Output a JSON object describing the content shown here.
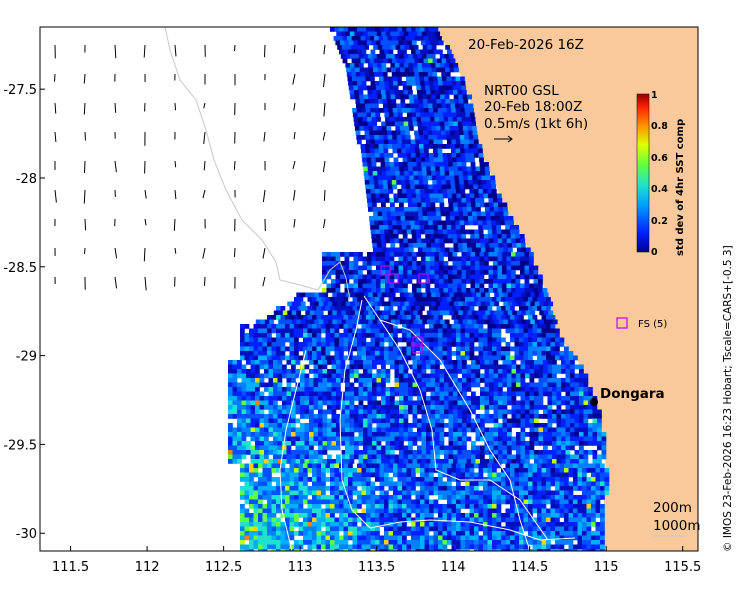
{
  "chart_data": {
    "type": "heatmap",
    "title": "20-Feb-2026 16Z",
    "x_ticks": [
      "111.5",
      "112",
      "112.5",
      "113",
      "113.5",
      "114",
      "114.5",
      "115",
      "115.5"
    ],
    "y_ticks": [
      "-27.5",
      "-28",
      "-28.5",
      "-29",
      "-29.5",
      "-30"
    ],
    "xlim": [
      111.3,
      115.6
    ],
    "ylim": [
      -30.1,
      -27.15
    ],
    "colorbar": {
      "label": "std dev of 4hr SST comp",
      "ticks": [
        "0",
        "0.2",
        "0.4",
        "0.6",
        "0.8",
        "1"
      ],
      "range": [
        0,
        1
      ]
    },
    "vector_legend": {
      "line1": "NRT00 GSL",
      "line2": "20-Feb 18:00Z",
      "line3": "0.5m/s (1kt 6h)"
    },
    "isobath_legend": {
      "line1": "200m",
      "line2": "1000m"
    },
    "station_marker": {
      "label": "FS (5)",
      "color": "#c000ff"
    },
    "place": {
      "name": "Dongara",
      "lon": 114.93,
      "lat": -29.25
    },
    "credit": "© IMOS 23-Feb-2026 16:23 Hobart; Tscale=CARS+[-0.5 3]",
    "colors": {
      "land": "#f9c99c",
      "ocean": "#ffffff"
    }
  }
}
